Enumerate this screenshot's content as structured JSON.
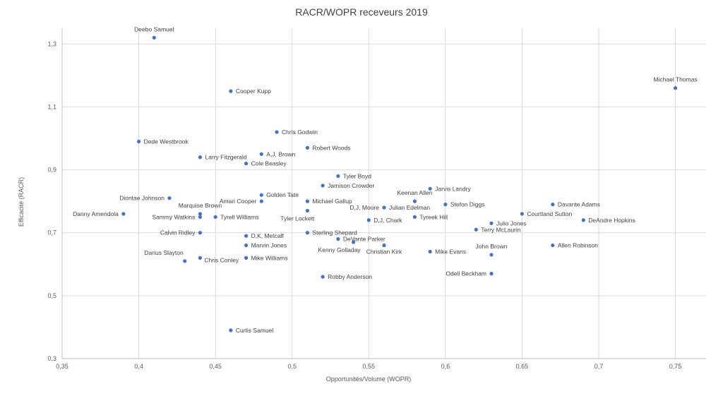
{
  "chart_data": {
    "type": "scatter",
    "title": "RACR/WOPR receveurs 2019",
    "xlabel": "Opportunités/Volume (WOPR)",
    "ylabel": "Efficacité (RACR)",
    "xlim": [
      0.35,
      0.77
    ],
    "ylim": [
      0.3,
      1.35
    ],
    "xticks": [
      0.35,
      0.4,
      0.45,
      0.5,
      0.55,
      0.6,
      0.65,
      0.7,
      0.75
    ],
    "xtick_labels": [
      "0,35",
      "0,4",
      "0,45",
      "0,5",
      "0,55",
      "0,6",
      "0,65",
      "0,7",
      "0,75"
    ],
    "yticks": [
      0.3,
      0.5,
      0.7,
      0.9,
      1.1,
      1.3
    ],
    "ytick_labels": [
      "0,3",
      "0,5",
      "0,7",
      "0,9",
      "1,1",
      "1,3"
    ],
    "grid": true,
    "color": "#4472c4",
    "points": [
      {
        "label": "Deebo Samuel",
        "x": 0.41,
        "y": 1.32,
        "pos": "above"
      },
      {
        "label": "Michael Thomas",
        "x": 0.75,
        "y": 1.16,
        "pos": "above"
      },
      {
        "label": "Cooper Kupp",
        "x": 0.46,
        "y": 1.15,
        "pos": "right"
      },
      {
        "label": "Chris Godwin",
        "x": 0.49,
        "y": 1.02,
        "pos": "right"
      },
      {
        "label": "Dede Westbrook",
        "x": 0.4,
        "y": 0.99,
        "pos": "right"
      },
      {
        "label": "Robert Woods",
        "x": 0.51,
        "y": 0.97,
        "pos": "right"
      },
      {
        "label": "A,J, Brown",
        "x": 0.48,
        "y": 0.95,
        "pos": "right"
      },
      {
        "label": "Larry Fitzgerald",
        "x": 0.44,
        "y": 0.94,
        "pos": "right"
      },
      {
        "label": "Cole Beasley",
        "x": 0.47,
        "y": 0.92,
        "pos": "right"
      },
      {
        "label": "Tyler Boyd",
        "x": 0.53,
        "y": 0.88,
        "pos": "right"
      },
      {
        "label": "Jamison Crowder",
        "x": 0.52,
        "y": 0.85,
        "pos": "right"
      },
      {
        "label": "Jarvis Landry",
        "x": 0.59,
        "y": 0.84,
        "pos": "right"
      },
      {
        "label": "Golden Tate",
        "x": 0.48,
        "y": 0.82,
        "pos": "right"
      },
      {
        "label": "Diontae Johnson",
        "x": 0.42,
        "y": 0.81,
        "pos": "left"
      },
      {
        "label": "Amari Cooper",
        "x": 0.48,
        "y": 0.8,
        "pos": "left"
      },
      {
        "label": "Michael Gallup",
        "x": 0.51,
        "y": 0.8,
        "pos": "right"
      },
      {
        "label": "Keenan Allen",
        "x": 0.58,
        "y": 0.8,
        "pos": "above"
      },
      {
        "label": "Stefon Diggs",
        "x": 0.6,
        "y": 0.79,
        "pos": "right"
      },
      {
        "label": "Davante Adams",
        "x": 0.67,
        "y": 0.79,
        "pos": "right"
      },
      {
        "label": "D,J, Moore",
        "x": 0.56,
        "y": 0.78,
        "pos": "left"
      },
      {
        "label": "Julian Edelman",
        "x": 0.56,
        "y": 0.78,
        "pos": "right"
      },
      {
        "label": "Marquise Brown",
        "x": 0.44,
        "y": 0.76,
        "pos": "above"
      },
      {
        "label": "Tyler Lockett",
        "x": 0.51,
        "y": 0.77,
        "pos": "belowleft"
      },
      {
        "label": "Danny Amendola",
        "x": 0.39,
        "y": 0.76,
        "pos": "left"
      },
      {
        "label": "Sammy Watkins",
        "x": 0.44,
        "y": 0.75,
        "pos": "left"
      },
      {
        "label": "Tyrell Williams",
        "x": 0.45,
        "y": 0.75,
        "pos": "right"
      },
      {
        "label": "Courtland Sutton",
        "x": 0.65,
        "y": 0.76,
        "pos": "right"
      },
      {
        "label": "Tyreek Hill",
        "x": 0.58,
        "y": 0.75,
        "pos": "right"
      },
      {
        "label": "D,J, Chark",
        "x": 0.55,
        "y": 0.74,
        "pos": "right"
      },
      {
        "label": "DeAndre Hopkins",
        "x": 0.69,
        "y": 0.74,
        "pos": "right"
      },
      {
        "label": "Julio Jones",
        "x": 0.63,
        "y": 0.73,
        "pos": "right"
      },
      {
        "label": "Terry McLaurin",
        "x": 0.62,
        "y": 0.71,
        "pos": "right"
      },
      {
        "label": "Calvin Ridley",
        "x": 0.44,
        "y": 0.7,
        "pos": "left"
      },
      {
        "label": "Sterling Shepard",
        "x": 0.51,
        "y": 0.7,
        "pos": "right"
      },
      {
        "label": "D,K, Metcalf",
        "x": 0.47,
        "y": 0.69,
        "pos": "right"
      },
      {
        "label": "DeVante Parker",
        "x": 0.53,
        "y": 0.68,
        "pos": "right"
      },
      {
        "label": "Kenny Golladay",
        "x": 0.54,
        "y": 0.67,
        "pos": "belowleft"
      },
      {
        "label": "Marvin Jones",
        "x": 0.47,
        "y": 0.66,
        "pos": "right"
      },
      {
        "label": "Christian Kirk",
        "x": 0.56,
        "y": 0.66,
        "pos": "below"
      },
      {
        "label": "Allen Robinson",
        "x": 0.67,
        "y": 0.66,
        "pos": "right"
      },
      {
        "label": "Mike Evans",
        "x": 0.59,
        "y": 0.64,
        "pos": "right"
      },
      {
        "label": "John Brown",
        "x": 0.63,
        "y": 0.63,
        "pos": "above"
      },
      {
        "label": "Darius Slayton",
        "x": 0.43,
        "y": 0.61,
        "pos": "aboveleft"
      },
      {
        "label": "Chris Conley",
        "x": 0.44,
        "y": 0.62,
        "pos": "belowright"
      },
      {
        "label": "Mike Williams",
        "x": 0.47,
        "y": 0.62,
        "pos": "right"
      },
      {
        "label": "Odell Beckham",
        "x": 0.63,
        "y": 0.57,
        "pos": "left"
      },
      {
        "label": "Robby Anderson",
        "x": 0.52,
        "y": 0.56,
        "pos": "right"
      },
      {
        "label": "Curtis Samuel",
        "x": 0.46,
        "y": 0.39,
        "pos": "right"
      }
    ]
  }
}
